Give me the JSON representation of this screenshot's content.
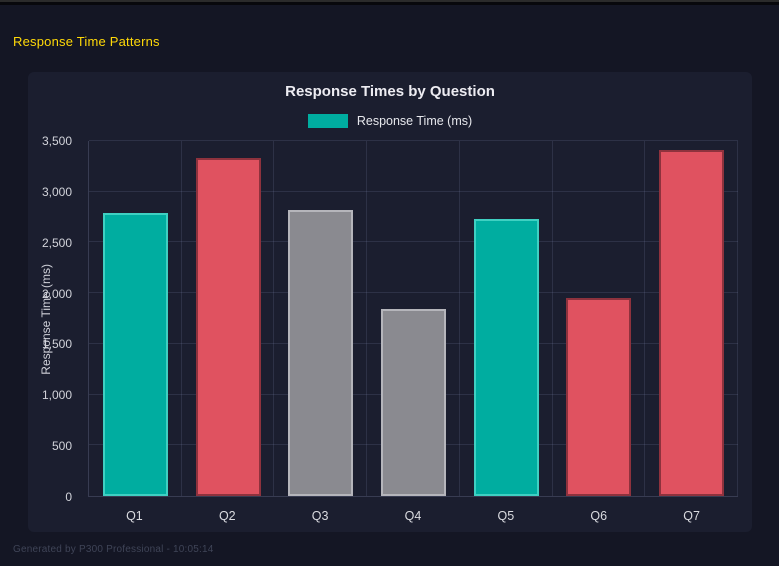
{
  "page": {
    "heading": "Response Time Patterns",
    "footer": "Generated by P300 Professional - 10:05:14"
  },
  "colors": {
    "background": "#141624",
    "card_background": "#1b1e2f",
    "heading_accent": "#ffd908",
    "teal": "#00ada0",
    "red": "#e05260",
    "gray": "#8a8a90"
  },
  "chart_data": {
    "type": "bar",
    "title": "Response Times by Question",
    "legend": [
      {
        "label": "Response Time (ms)",
        "color": "#00ada0"
      }
    ],
    "legend_position": "top",
    "categories": [
      "Q1",
      "Q2",
      "Q3",
      "Q4",
      "Q5",
      "Q6",
      "Q7"
    ],
    "values": [
      2795,
      3330,
      2815,
      1845,
      2730,
      1950,
      3410
    ],
    "bar_colors": [
      "#00ada0",
      "#e05260",
      "#8a8a90",
      "#8a8a90",
      "#00ada0",
      "#e05260",
      "#e05260"
    ],
    "bar_border_colors": [
      "#3fd0c2",
      "#8e323d",
      "#b5b5bb",
      "#b5b5bb",
      "#3fd0c2",
      "#8e323d",
      "#8e323d"
    ],
    "xlabel": "",
    "ylabel": "Response Time (ms)",
    "ylim": [
      0,
      3500
    ],
    "ytick_step": 500,
    "yticks": [
      "0",
      "500",
      "1,000",
      "1,500",
      "2,000",
      "2,500",
      "3,000",
      "3,500"
    ],
    "grid": true
  }
}
